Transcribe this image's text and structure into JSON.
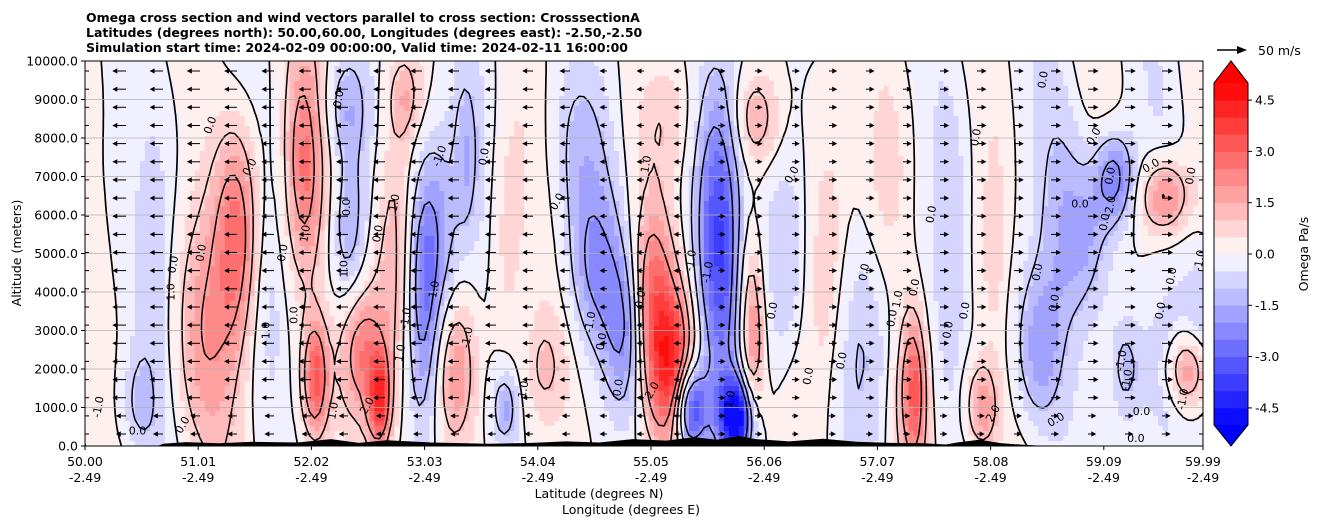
{
  "chart_data": {
    "type": "heatmap",
    "title_lines": [
      "Omega cross section and wind vectors parallel to cross section: CrosssectionA",
      "Latitudes (degrees north): 50.00,60.00, Longitudes (degrees east): -2.50,-2.50",
      "Simulation start time: 2024-02-09 00:00:00, Valid time: 2024-02-11 16:00:00"
    ],
    "ylabel": "Altitude (meters)",
    "xlabel_lines": [
      "Latitude (degrees N)",
      "Longitude (degrees E)"
    ],
    "ylim": [
      0,
      10000
    ],
    "y_ticks": [
      "0.0",
      "1000.0",
      "2000.0",
      "3000.0",
      "4000.0",
      "5000.0",
      "6000.0",
      "7000.0",
      "8000.0",
      "9000.0",
      "10000.0"
    ],
    "x_ticks_lat": [
      "50.00",
      "51.01",
      "52.02",
      "53.03",
      "54.04",
      "55.05",
      "56.06",
      "57.07",
      "58.08",
      "59.09",
      "59.99"
    ],
    "x_ticks_lon": [
      "-2.49",
      "-2.49",
      "-2.49",
      "-2.49",
      "-2.49",
      "-2.49",
      "-2.49",
      "-2.49",
      "-2.49",
      "-2.49",
      "-2.49"
    ],
    "colorbar": {
      "label": "Omega Pa/s",
      "ticks": [
        "-4.5",
        "-3.0",
        "-1.5",
        "0.0",
        "1.5",
        "3.0",
        "4.5"
      ],
      "range": [
        -5,
        5
      ],
      "neg_color": "#0000ff",
      "pos_color": "#ff0000"
    },
    "vector_key": {
      "label": "50 m/s"
    },
    "contour_labels": [
      "0.0",
      "-1.0",
      "1.0",
      "2.0",
      "-2.0"
    ],
    "grid": "horizontal"
  }
}
